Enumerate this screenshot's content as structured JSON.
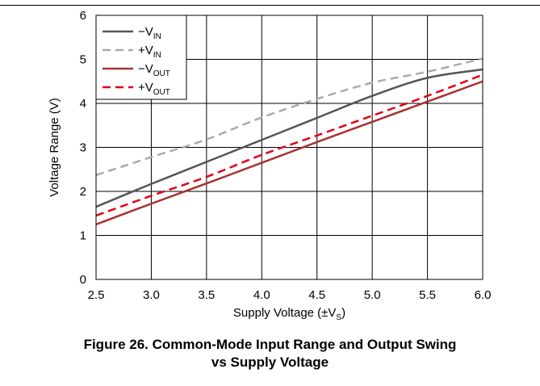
{
  "chart_data": {
    "type": "line",
    "xlabel": "Supply Voltage (±V",
    "xlabel_sub": "S",
    "xlabel_suffix": ")",
    "ylabel": "Voltage Range (V)",
    "xlim": [
      2.5,
      6.0
    ],
    "ylim": [
      0,
      6
    ],
    "x_ticks": [
      "2.5",
      "3.0",
      "3.5",
      "4.0",
      "4.5",
      "5.0",
      "5.5",
      "6.0"
    ],
    "y_ticks": [
      "0",
      "1",
      "2",
      "3",
      "4",
      "5",
      "6"
    ],
    "grid": true,
    "legend_position": "top-left",
    "x": [
      2.5,
      3.0,
      3.5,
      4.0,
      4.5,
      5.0,
      5.5,
      6.0
    ],
    "series": [
      {
        "name": "−V",
        "sub": "IN",
        "color": "#555555",
        "dash": "solid",
        "values": [
          1.65,
          2.17,
          2.67,
          3.17,
          3.67,
          4.17,
          4.58,
          4.77
        ]
      },
      {
        "name": "+V",
        "sub": "IN",
        "color": "#aaaaaa",
        "dash": "dashed",
        "values": [
          2.37,
          2.78,
          3.18,
          3.68,
          4.1,
          4.47,
          4.72,
          5.02
        ]
      },
      {
        "name": "−V",
        "sub": "OUT",
        "color": "#a83232",
        "dash": "solid",
        "values": [
          1.25,
          1.72,
          2.18,
          2.65,
          3.12,
          3.58,
          4.04,
          4.5
        ]
      },
      {
        "name": "+V",
        "sub": "OUT",
        "color": "#e0001a",
        "dash": "dashed",
        "values": [
          1.45,
          1.9,
          2.33,
          2.83,
          3.27,
          3.72,
          4.17,
          4.65
        ]
      }
    ]
  },
  "caption": {
    "line1": "Figure 26. Common-Mode Input Range and Output Swing",
    "line2": "vs Supply Voltage"
  }
}
